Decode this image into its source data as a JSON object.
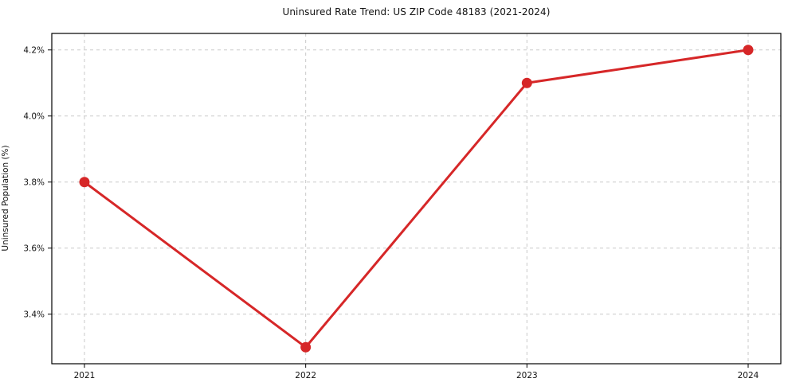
{
  "figure": {
    "background": "#ffffff"
  },
  "chart_data": {
    "type": "line",
    "title": "Uninsured Rate Trend: US ZIP Code 48183 (2021-2024)",
    "xlabel": "",
    "ylabel": "Uninsured Population (%)",
    "categories": [
      "2021",
      "2022",
      "2023",
      "2024"
    ],
    "series": [
      {
        "name": "uninsured-rate",
        "values": [
          3.8,
          3.3,
          4.1,
          4.2
        ],
        "color": "#d62728",
        "marker": "circle",
        "marker_radius": 6.5,
        "line_width": 3
      }
    ],
    "ylim": [
      3.25,
      4.25
    ],
    "yticks": [
      3.4,
      3.6,
      3.8,
      4.0,
      4.2
    ],
    "ytick_labels": [
      "3.4%",
      "3.6%",
      "3.8%",
      "4.0%",
      "4.2%"
    ],
    "grid": true,
    "grid_style": "dashed",
    "grid_color": "#c9c9c9",
    "legend": "none",
    "frame_color": "#000000",
    "text_color": "#111111"
  }
}
